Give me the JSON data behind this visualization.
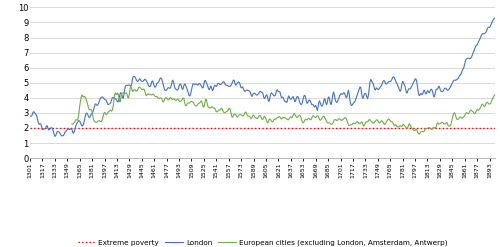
{
  "extreme_poverty_value": 2.0,
  "extreme_poverty_label": "Extreme poverty",
  "london_label": "London",
  "european_label": "European cities (excluding London, Amsterdam, Antwerp)",
  "extreme_poverty_color": "#ff0000",
  "london_color": "#4472c4",
  "european_color": "#70ad47",
  "background_color": "#ffffff",
  "grid_color": "#d9d9d9",
  "xtick_labels": [
    "1301",
    "1317",
    "1333",
    "1349",
    "1365",
    "1381",
    "1397",
    "1413",
    "1429",
    "1445",
    "1461",
    "1477",
    "1493",
    "1509",
    "1525",
    "1541",
    "1557",
    "1573",
    "1589",
    "1605",
    "1621",
    "1637",
    "1653",
    "1669",
    "1685",
    "1701",
    "1717",
    "1733",
    "1749",
    "1765",
    "1781",
    "1797",
    "1813",
    "1829",
    "1845",
    "1861",
    "1877",
    "1893"
  ],
  "ylim": [
    0,
    10
  ],
  "yticks": [
    0,
    1,
    2,
    3,
    4,
    5,
    6,
    7,
    8,
    9,
    10
  ],
  "start_year": 1301,
  "end_year": 1900
}
